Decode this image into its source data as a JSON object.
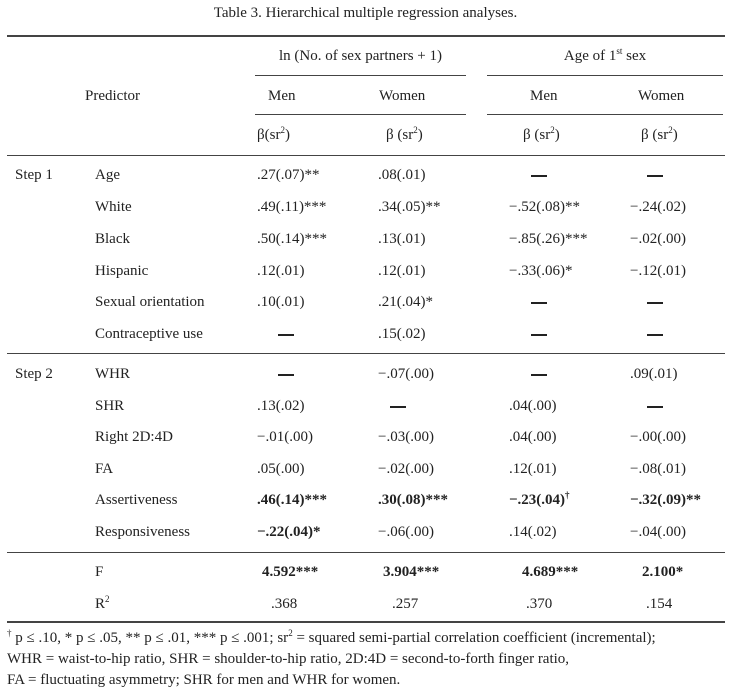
{
  "caption": "Table  3.   Hierarchical multiple regression analyses.",
  "header": {
    "predictor": "Predictor",
    "group1": "ln (No. of sex partners + 1)",
    "group2_prefix": "Age of 1",
    "group2_sup": "st",
    "group2_suffix": " sex",
    "men": "Men",
    "women": "Women",
    "beta_men1": "β(sr",
    "beta_other": "β (sr",
    "sq": "2",
    "close": ")"
  },
  "rows": [
    {
      "step": "Step 1",
      "predictor": "Age",
      "v": [
        ".27(.07)**",
        ".08(.01)",
        "—",
        "—"
      ]
    },
    {
      "step": "",
      "predictor": "White",
      "v": [
        ".49(.11)***",
        ".34(.05)**",
        "−.52(.08)**",
        "−.24(.02)"
      ]
    },
    {
      "step": "",
      "predictor": "Black",
      "v": [
        ".50(.14)***",
        ".13(.01)",
        "−.85(.26)***",
        "−.02(.00)"
      ]
    },
    {
      "step": "",
      "predictor": "Hispanic",
      "v": [
        ".12(.01)",
        ".12(.01)",
        "−.33(.06)*",
        "−.12(.01)"
      ]
    },
    {
      "step": "",
      "predictor": "Sexual orientation",
      "v": [
        ".10(.01)",
        ".21(.04)*",
        "—",
        "—"
      ]
    },
    {
      "step": "",
      "predictor": "Contraceptive use",
      "v": [
        "—",
        ".15(.02)",
        "—",
        "—"
      ]
    },
    {
      "step": "Step 2",
      "predictor": "WHR",
      "v": [
        "—",
        "−.07(.00)",
        "—",
        ".09(.01)"
      ]
    },
    {
      "step": "",
      "predictor": "SHR",
      "v": [
        ".13(.02)",
        "—",
        ".04(.00)",
        "—"
      ]
    },
    {
      "step": "",
      "predictor": "Right 2D:4D",
      "v": [
        "−.01(.00)",
        "−.03(.00)",
        ".04(.00)",
        "−.00(.00)"
      ]
    },
    {
      "step": "",
      "predictor": "FA",
      "v": [
        ".05(.00)",
        "−.02(.00)",
        ".12(.01)",
        "−.08(.01)"
      ]
    },
    {
      "step": "",
      "predictor": "Assertiveness",
      "v": [
        ".46(.14)***",
        ".30(.08)***",
        "−.23(.04)",
        "−.32(.09)**"
      ],
      "bold": [
        true,
        true,
        true,
        true
      ],
      "sup3": "†"
    },
    {
      "step": "",
      "predictor": "Responsiveness",
      "v": [
        "−.22(.04)*",
        "−.06(.00)",
        ".14(.02)",
        "−.04(.00)"
      ],
      "bold": [
        true,
        false,
        false,
        false
      ]
    }
  ],
  "summary": [
    {
      "label": "F",
      "v": [
        "4.592***",
        "3.904***",
        "4.689***",
        "2.100*"
      ],
      "bold": true
    },
    {
      "label": "R",
      "label_sup": "2",
      "v": [
        ".368",
        ".257",
        ".370",
        ".154"
      ],
      "bold": false
    }
  ],
  "footnotes": {
    "dagger": "†",
    "line1": " p ≤ .10, * p ≤ .05, ** p ≤ .01, *** p ≤ .001; sr",
    "line1_sup": "2",
    "line1_end": " = squared semi-partial correlation coefficient (incremental);",
    "line2": "WHR = waist-to-hip ratio, SHR = shoulder-to-hip ratio, 2D:4D = second-to-forth finger ratio,",
    "line3": "FA = fluctuating asymmetry; SHR for men and WHR for women."
  }
}
